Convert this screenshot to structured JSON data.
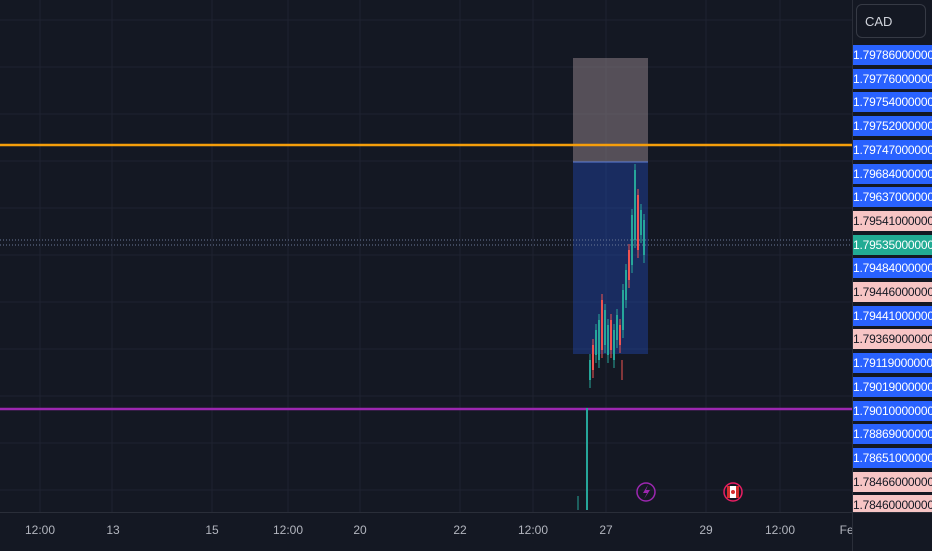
{
  "currency": "CAD",
  "colors": {
    "background": "#141823",
    "grid": "#1e2230",
    "resistance_line": "#f59e0b",
    "support_line": "#9c27b0",
    "target_zone": "#2962ff",
    "stop_zone": "#787b86",
    "candle_up": "#26a69a",
    "candle_down": "#ef5350",
    "label_blue": "#2962ff",
    "label_pink": "#f7c5c5",
    "label_teal": "#22ab94"
  },
  "price_scale_labels": [
    {
      "text": "1.79786000000",
      "style": "blue"
    },
    {
      "text": "1.79776000000",
      "style": "blue"
    },
    {
      "text": "1.79754000000",
      "style": "blue"
    },
    {
      "text": "1.79752000000",
      "style": "blue"
    },
    {
      "text": "1.79747000000",
      "style": "blue"
    },
    {
      "text": "1.79684000000",
      "style": "blue"
    },
    {
      "text": "1.79637000000",
      "style": "blue"
    },
    {
      "text": "1.79541000000",
      "style": "pink"
    },
    {
      "text": "1.79535000000",
      "style": "teal"
    },
    {
      "text": "1.79484000000",
      "style": "blue"
    },
    {
      "text": "1.79446000000",
      "style": "pink"
    },
    {
      "text": "1.79441000000",
      "style": "blue"
    },
    {
      "text": "1.79369000000",
      "style": "pink"
    },
    {
      "text": "1.79119000000",
      "style": "blue"
    },
    {
      "text": "1.79019000000",
      "style": "blue"
    },
    {
      "text": "1.79010000000",
      "style": "blue"
    },
    {
      "text": "1.78869000000",
      "style": "blue"
    },
    {
      "text": "1.78651000000",
      "style": "blue"
    },
    {
      "text": "1.78466000000",
      "style": "pink"
    },
    {
      "text": "1.78460000000",
      "style": "pink"
    }
  ],
  "time_axis_labels": [
    "12:00",
    "13",
    "15",
    "12:00",
    "20",
    "22",
    "12:00",
    "27",
    "29",
    "12:00",
    "Fel"
  ],
  "events": [
    {
      "icon": "lightning-icon",
      "color": "#9c27b0"
    },
    {
      "icon": "canada-flag-icon",
      "color": "#e91e63"
    }
  ]
}
